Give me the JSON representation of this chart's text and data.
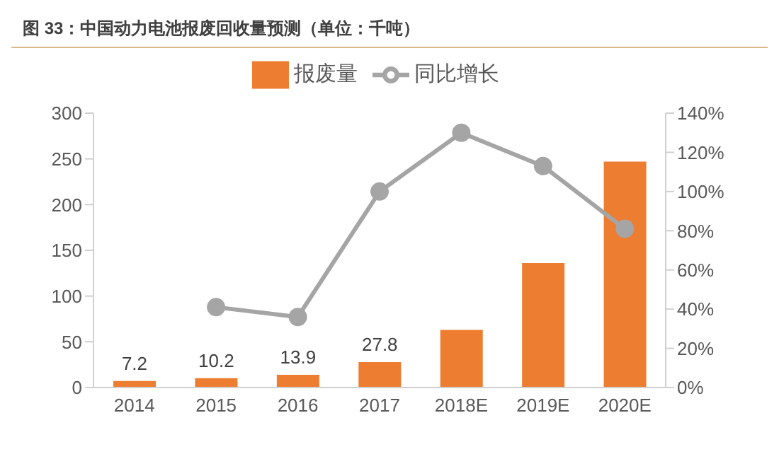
{
  "chart_data": {
    "type": "bar",
    "title": "图 33：中国动力电池报废回收量预测（单位：千吨）",
    "categories": [
      "2014",
      "2015",
      "2016",
      "2017",
      "2018E",
      "2019E",
      "2020E"
    ],
    "series": [
      {
        "name": "报废量",
        "color": "#ed7d31",
        "values": [
          7.2,
          10.2,
          13.9,
          27.8,
          63,
          136,
          247
        ],
        "value_labels": [
          "7.2",
          "10.2",
          "13.9",
          "27.8",
          null,
          null,
          null
        ]
      },
      {
        "name": "同比增长",
        "type": "line",
        "axis": "y2",
        "color": "#a5a5a5",
        "values": [
          null,
          41,
          36,
          100,
          130,
          113,
          81
        ]
      }
    ],
    "ylim": [
      0,
      300
    ],
    "yticks": [
      0,
      50,
      100,
      150,
      200,
      250,
      300
    ],
    "y2lim": [
      0,
      140
    ],
    "y2ticks": [
      {
        "value": 0,
        "label": "0%"
      },
      {
        "value": 20,
        "label": "20%"
      },
      {
        "value": 40,
        "label": "40%"
      },
      {
        "value": 60,
        "label": "60%"
      },
      {
        "value": 80,
        "label": "80%"
      },
      {
        "value": 100,
        "label": "100%"
      },
      {
        "value": 120,
        "label": "120%"
      },
      {
        "value": 140,
        "label": "140%"
      }
    ],
    "grid": false,
    "legend": "top",
    "marker": "circle"
  }
}
